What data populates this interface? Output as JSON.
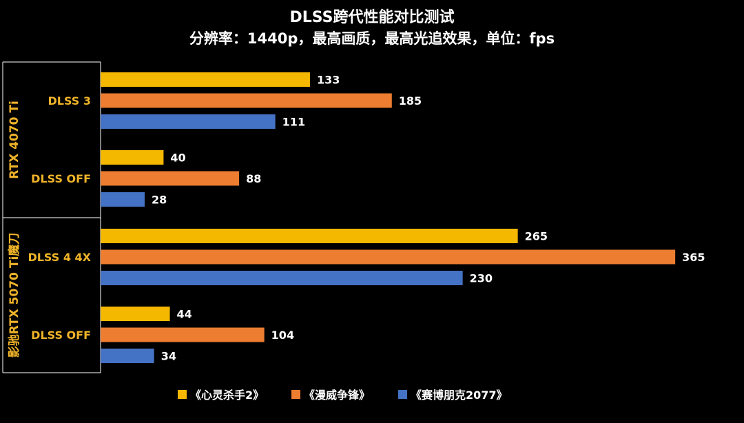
{
  "chart_data": {
    "type": "bar",
    "orientation": "horizontal",
    "title": "DLSS跨代性能对比测试",
    "subtitle": "分辨率：1440p，最高画质，最高光追效果，单位：fps",
    "gpus": [
      {
        "name": "RTX 4070 Ti",
        "groups": [
          {
            "label": "DLSS 3",
            "values": [
              133,
              185,
              111
            ]
          },
          {
            "label": "DLSS OFF",
            "values": [
              40,
              88,
              28
            ]
          }
        ]
      },
      {
        "name": "影驰RTX 5070 Ti魔刀",
        "groups": [
          {
            "label": "DLSS 4 4X",
            "values": [
              265,
              365,
              230
            ]
          },
          {
            "label": "DLSS OFF",
            "values": [
              44,
              104,
              34
            ]
          }
        ]
      }
    ],
    "series": [
      {
        "name": "《心灵杀手2》",
        "color": "#f5b800"
      },
      {
        "name": "《漫威争锋》",
        "color": "#ed7d31"
      },
      {
        "name": "《赛博朋克2077》",
        "color": "#4472c4"
      }
    ],
    "xlim": [
      0,
      375
    ],
    "grid": false,
    "legend": "bottom",
    "colors": {
      "background": "#000000",
      "label": "#f0b429",
      "text": "#ffffff",
      "frame": "#ffffff"
    }
  }
}
